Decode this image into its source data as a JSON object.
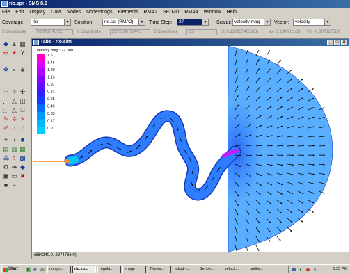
{
  "window": {
    "title": "rio.spr - SMS 8.0"
  },
  "menu": [
    "File",
    "Edit",
    "Display",
    "Data",
    "Nodes",
    "Nodestrings",
    "Elements",
    "RMA2",
    "SED2D",
    "RMA4",
    "Window",
    "Help"
  ],
  "toolbar": {
    "coverage_label": "Coverage:",
    "coverage_value": "rio",
    "solution_label": "Solution:",
    "solution_value": "rio.sol (RMA2)",
    "timestep_label": "Time Step:",
    "timestep_value": "27",
    "scalar_label": "Scalar:",
    "scalar_value": "velocity mag",
    "vector_label": "Vector:",
    "vector_value": "velocity"
  },
  "coords": {
    "x_label": "X Coordinate",
    "x_value": "683981.48935",
    "y_label": "Y Coordinate",
    "y_value": "2872506.73445",
    "z_label": "Z Coordinate",
    "z_value": "2.5",
    "s_text": "S: 0.1302374631(3)",
    "vx_text": "Vx: 0.1300011(3)",
    "vy_text": "Vy: -0.0073275(3)"
  },
  "document": {
    "title": "Tabs - rio.sim"
  },
  "legend": {
    "title": "velocity mag : 27.000",
    "labels": [
      "1.61",
      "1.45",
      "1.29",
      "1.13",
      "0.97",
      "0.81",
      "0.65",
      "0.49",
      "0.33",
      "0.17",
      "0.01"
    ],
    "colors": [
      "#ff00c8",
      "#e000ff",
      "#b400ff",
      "#8a00ff",
      "#5a10ff",
      "#3020ff",
      "#1040ff",
      "#0070ff",
      "#0098ff",
      "#00b8ff",
      "#00d0ff"
    ]
  },
  "status": {
    "cursor_coords": "(684240.0, 2874786.0)"
  },
  "taskbar": {
    "start_label": "Start",
    "tasks": [
      "rio.spr...",
      "rio.sp...",
      "regula...",
      "image",
      "Thesis...",
      "tobsd v...",
      "Senoti...",
      "velocit...",
      "untitle..."
    ],
    "clock": "5:25 PM"
  }
}
